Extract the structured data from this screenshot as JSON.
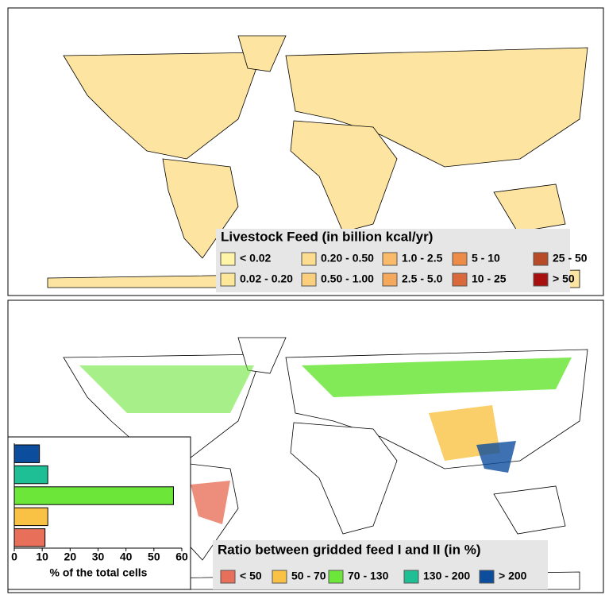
{
  "maps": [
    {
      "title": "Livestock Feed (in billion kcal/yr)",
      "legend": [
        {
          "label": "< 0.02",
          "color": "#fff5a8"
        },
        {
          "label": "0.02 - 0.20",
          "color": "#fde89a"
        },
        {
          "label": "0.20 - 0.50",
          "color": "#fcdc8e"
        },
        {
          "label": "0.50 - 1.00",
          "color": "#fbcf7e"
        },
        {
          "label": "1.0 - 2.5",
          "color": "#f9bb6a"
        },
        {
          "label": "2.5 - 5.0",
          "color": "#f5a95c"
        },
        {
          "label": "5 - 10",
          "color": "#ec8c48"
        },
        {
          "label": "10 - 25",
          "color": "#d9683a"
        },
        {
          "label": "25 - 50",
          "color": "#b94a27"
        },
        {
          "label": "> 50",
          "color": "#a80f0f"
        }
      ]
    },
    {
      "title": "Ratio between gridded feed I and II (in %)",
      "legend": [
        {
          "label": "< 50",
          "color": "#e8705a"
        },
        {
          "label": "50 - 70",
          "color": "#f9c244"
        },
        {
          "label": "70 - 130",
          "color": "#6de63a"
        },
        {
          "label": "130 - 200",
          "color": "#1fbf95"
        },
        {
          "label": "> 200",
          "color": "#0d4d9e"
        }
      ]
    }
  ],
  "chart_data": {
    "type": "hbar",
    "xlabel": "% of the total cells",
    "values": [
      11,
      12,
      57,
      12,
      9
    ],
    "colors": [
      "#e8705a",
      "#f9c244",
      "#6de63a",
      "#1fbf95",
      "#0d4d9e"
    ],
    "xlim": [
      0,
      60
    ],
    "xticks": [
      0,
      10,
      20,
      30,
      40,
      50,
      60
    ]
  }
}
